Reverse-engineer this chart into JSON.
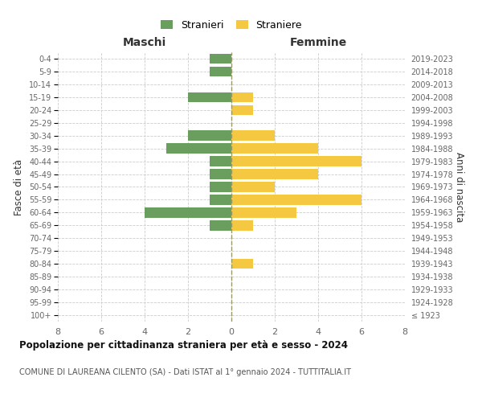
{
  "age_groups": [
    "100+",
    "95-99",
    "90-94",
    "85-89",
    "80-84",
    "75-79",
    "70-74",
    "65-69",
    "60-64",
    "55-59",
    "50-54",
    "45-49",
    "40-44",
    "35-39",
    "30-34",
    "25-29",
    "20-24",
    "15-19",
    "10-14",
    "5-9",
    "0-4"
  ],
  "birth_years": [
    "≤ 1923",
    "1924-1928",
    "1929-1933",
    "1934-1938",
    "1939-1943",
    "1944-1948",
    "1949-1953",
    "1954-1958",
    "1959-1963",
    "1964-1968",
    "1969-1973",
    "1974-1978",
    "1979-1983",
    "1984-1988",
    "1989-1993",
    "1994-1998",
    "1999-2003",
    "2004-2008",
    "2009-2013",
    "2014-2018",
    "2019-2023"
  ],
  "males": [
    0,
    0,
    0,
    0,
    0,
    0,
    0,
    1,
    4,
    1,
    1,
    1,
    1,
    3,
    2,
    0,
    0,
    2,
    0,
    1,
    1
  ],
  "females": [
    0,
    0,
    0,
    0,
    1,
    0,
    0,
    1,
    3,
    6,
    2,
    4,
    6,
    4,
    2,
    0,
    1,
    1,
    0,
    0,
    0
  ],
  "male_color": "#6a9e5e",
  "female_color": "#f5c842",
  "title": "Popolazione per cittadinanza straniera per età e sesso - 2024",
  "subtitle": "COMUNE DI LAUREANA CILENTO (SA) - Dati ISTAT al 1° gennaio 2024 - TUTTITALIA.IT",
  "xlabel_left": "Maschi",
  "xlabel_right": "Femmine",
  "ylabel_left": "Fasce di età",
  "ylabel_right": "Anni di nascita",
  "legend_male": "Stranieri",
  "legend_female": "Straniere",
  "xlim": 8,
  "background_color": "#ffffff",
  "grid_color": "#cccccc"
}
